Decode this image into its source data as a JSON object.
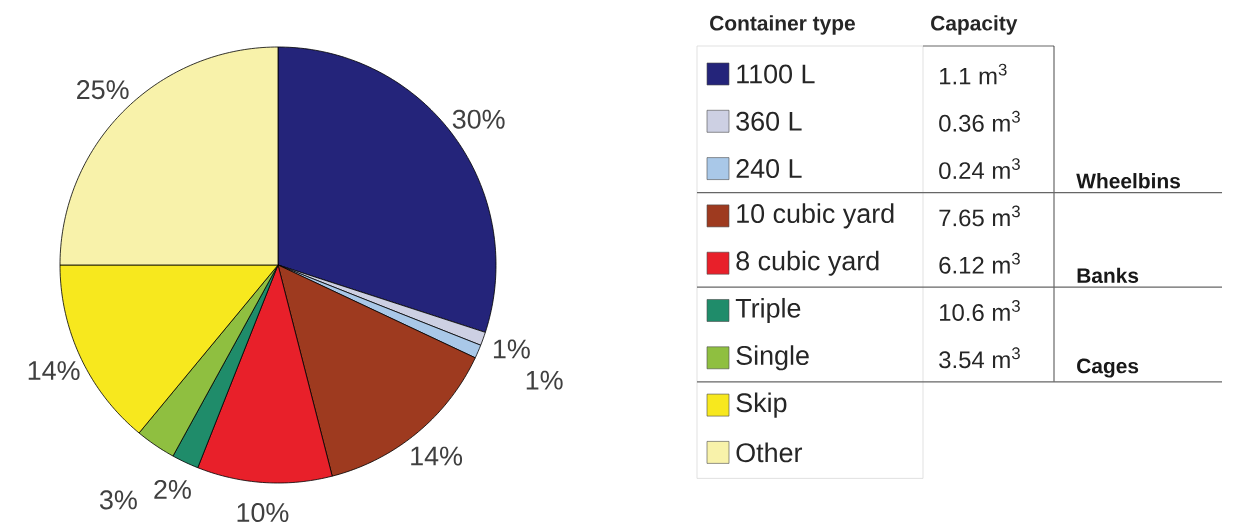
{
  "chart_data": {
    "type": "pie",
    "legend_title": "Container type",
    "legend": "right",
    "categories": [
      "1100 L",
      "360 L",
      "240 L",
      "10 cubic yard",
      "8 cubic yard",
      "Triple",
      "Single",
      "Skip",
      "Other"
    ],
    "values": [
      30,
      1,
      1,
      14,
      10,
      2,
      3,
      14,
      25
    ],
    "colors": [
      "#24247a",
      "#cdd0e3",
      "#a9c8e8",
      "#9e3a1f",
      "#e8202a",
      "#1f8c6a",
      "#8fbf40",
      "#f7e81e",
      "#f8f2aa"
    ],
    "value_labels": [
      "30%",
      "1%",
      "1%",
      "14%",
      "10%",
      "2%",
      "3%",
      "14%",
      "25%"
    ],
    "annotations": [
      "Capacity",
      "1.1 m$^{3}$",
      "0.36 m$^{3}$",
      "0.24 m$^{3}$",
      "7.65 m$^{3}$",
      "6.12 m$^{3}$",
      "10.6 m$^{3}$",
      "3.54 m$^{3}$",
      "Wheelbins",
      "Banks",
      "Cages"
    ]
  }
}
